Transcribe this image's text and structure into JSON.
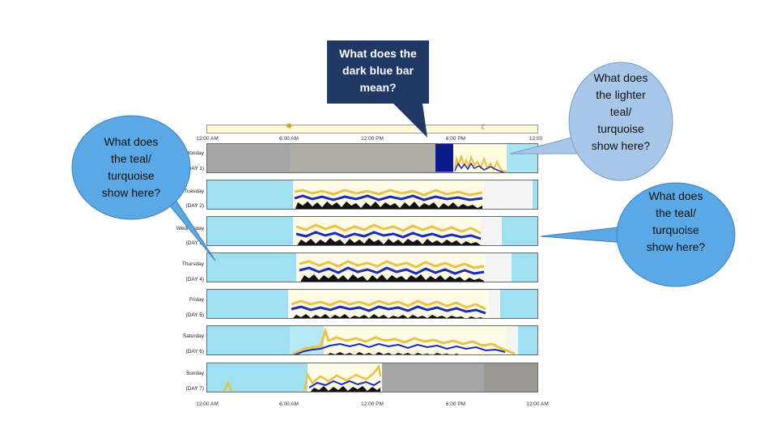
{
  "timeline": {
    "top_ticks": [
      "12:00 AM",
      "6:00 AM",
      "12:00 PM",
      "6:00 PM",
      "12:00"
    ],
    "bottom_ticks": [
      "12:00 AM",
      "6:00 AM",
      "12:00 PM",
      "6:00 PM",
      "12:00 AM"
    ]
  },
  "days": [
    {
      "name": "Monday",
      "sub": "(DAY 1)"
    },
    {
      "name": "Tuesday",
      "sub": "(DAY 2)"
    },
    {
      "name": "Wednesday",
      "sub": "(DAY 3)"
    },
    {
      "name": "Thursday",
      "sub": "(DAY 4)"
    },
    {
      "name": "Friday",
      "sub": "(DAY 5)"
    },
    {
      "name": "Saturday",
      "sub": "(DAY 6)"
    },
    {
      "name": "Sunday",
      "sub": "(DAY 7)"
    }
  ],
  "callouts": {
    "dark_box": [
      "What does the",
      "dark blue bar",
      "mean?"
    ],
    "left_bubble": [
      "What does",
      "the teal/",
      "turquoise",
      "show here?"
    ],
    "top_right_bubble": [
      "What does",
      "the  lighter",
      "teal/",
      "turquoise",
      "show here?"
    ],
    "right_bubble": [
      "What does",
      "the teal/",
      "turquoise",
      "show here?"
    ]
  },
  "colors": {
    "teal": "#9fe1f2",
    "gray": "#a6a6a6",
    "dark_blue_bar": "#0a1a8c",
    "activity_yellow": "#e8c24a",
    "activity_blue": "#1a2bb5",
    "bubble_blue": "#5aa9e6",
    "bubble_light": "#a7c6e8",
    "dark_box": "#1f3864"
  }
}
